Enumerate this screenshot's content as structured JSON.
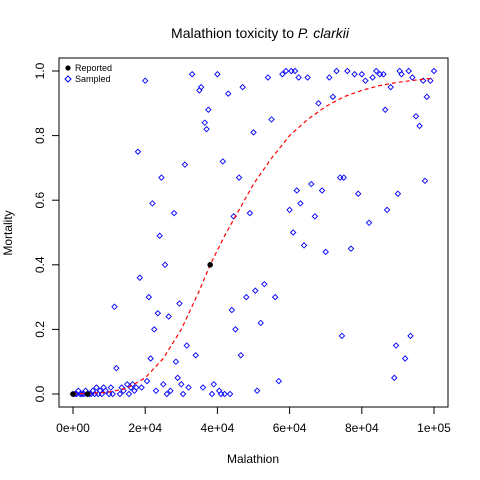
{
  "chart_data": {
    "type": "scatter",
    "title_main": "Malathion toxicity to ",
    "title_italic": "P. clarkii",
    "xlabel": "Malathion",
    "ylabel": "Mortality",
    "xlim": [
      0,
      100000
    ],
    "ylim": [
      0,
      1
    ],
    "x_ticks": [
      0,
      20000,
      40000,
      60000,
      80000,
      100000
    ],
    "x_tick_labels": [
      "0e+00",
      "2e+04",
      "4e+04",
      "6e+04",
      "8e+04",
      "1e+05"
    ],
    "y_ticks": [
      0.0,
      0.2,
      0.4,
      0.6,
      0.8,
      1.0
    ],
    "y_tick_labels": [
      "0.0",
      "0.2",
      "0.4",
      "0.6",
      "0.8",
      "1.0"
    ],
    "legend": {
      "position": "top-left",
      "entries": [
        {
          "label": "Reported",
          "marker": "filled-circle"
        },
        {
          "label": "Sampled",
          "marker": "open-diamond"
        }
      ]
    },
    "colors": {
      "sampled": "#0000ff",
      "reported": "#000000",
      "fit_curve": "#ff0000"
    },
    "fit_curve": {
      "style": "dashed",
      "x": [
        0,
        5000,
        10000,
        15000,
        20000,
        25000,
        30000,
        35000,
        38000,
        42000,
        46000,
        50000,
        55000,
        60000,
        65000,
        70000,
        75000,
        80000,
        85000,
        90000,
        95000,
        100000
      ],
      "y": [
        0.0,
        0.002,
        0.006,
        0.018,
        0.05,
        0.11,
        0.2,
        0.32,
        0.4,
        0.49,
        0.57,
        0.65,
        0.73,
        0.8,
        0.85,
        0.89,
        0.92,
        0.94,
        0.955,
        0.965,
        0.972,
        0.978
      ]
    },
    "reported": [
      {
        "x": 38000,
        "y": 0.4
      },
      {
        "x": 0,
        "y": 0.0
      },
      {
        "x": 4000,
        "y": 0.0
      }
    ],
    "sampled": [
      {
        "x": 0,
        "y": 0.0
      },
      {
        "x": 500,
        "y": 0.0
      },
      {
        "x": 1000,
        "y": 0.0
      },
      {
        "x": 1500,
        "y": 0.01
      },
      {
        "x": 2000,
        "y": 0.0
      },
      {
        "x": 2500,
        "y": 0.0
      },
      {
        "x": 3000,
        "y": 0.0
      },
      {
        "x": 3500,
        "y": 0.01
      },
      {
        "x": 4000,
        "y": 0.0
      },
      {
        "x": 4500,
        "y": 0.0
      },
      {
        "x": 5000,
        "y": 0.0
      },
      {
        "x": 5500,
        "y": 0.01
      },
      {
        "x": 6000,
        "y": 0.0
      },
      {
        "x": 6500,
        "y": 0.02
      },
      {
        "x": 7000,
        "y": 0.0
      },
      {
        "x": 7500,
        "y": 0.01
      },
      {
        "x": 8000,
        "y": 0.0
      },
      {
        "x": 8500,
        "y": 0.02
      },
      {
        "x": 9000,
        "y": 0.01
      },
      {
        "x": 10000,
        "y": 0.0
      },
      {
        "x": 10500,
        "y": 0.02
      },
      {
        "x": 11000,
        "y": 0.0
      },
      {
        "x": 11500,
        "y": 0.27
      },
      {
        "x": 12000,
        "y": 0.08
      },
      {
        "x": 13000,
        "y": 0.0
      },
      {
        "x": 13500,
        "y": 0.02
      },
      {
        "x": 14000,
        "y": 0.01
      },
      {
        "x": 15000,
        "y": 0.03
      },
      {
        "x": 15500,
        "y": 0.0
      },
      {
        "x": 16000,
        "y": 0.02
      },
      {
        "x": 16500,
        "y": 0.03
      },
      {
        "x": 17000,
        "y": 0.01
      },
      {
        "x": 17500,
        "y": 0.02
      },
      {
        "x": 18000,
        "y": 0.75
      },
      {
        "x": 18500,
        "y": 0.36
      },
      {
        "x": 19000,
        "y": 0.02
      },
      {
        "x": 20000,
        "y": 0.97
      },
      {
        "x": 20500,
        "y": 0.04
      },
      {
        "x": 21000,
        "y": 0.3
      },
      {
        "x": 21500,
        "y": 0.11
      },
      {
        "x": 22000,
        "y": 0.59
      },
      {
        "x": 22500,
        "y": 0.2
      },
      {
        "x": 23000,
        "y": 0.01
      },
      {
        "x": 23500,
        "y": 0.25
      },
      {
        "x": 24000,
        "y": 0.49
      },
      {
        "x": 24500,
        "y": 0.67
      },
      {
        "x": 25000,
        "y": 0.03
      },
      {
        "x": 25500,
        "y": 0.4
      },
      {
        "x": 26000,
        "y": 0.0
      },
      {
        "x": 26500,
        "y": 0.24
      },
      {
        "x": 27000,
        "y": 0.01
      },
      {
        "x": 28000,
        "y": 0.56
      },
      {
        "x": 28500,
        "y": 0.1
      },
      {
        "x": 29000,
        "y": 0.05
      },
      {
        "x": 29500,
        "y": 0.28
      },
      {
        "x": 30000,
        "y": 0.03
      },
      {
        "x": 30500,
        "y": 0.0
      },
      {
        "x": 31000,
        "y": 0.71
      },
      {
        "x": 31500,
        "y": 0.15
      },
      {
        "x": 32000,
        "y": 0.02
      },
      {
        "x": 33000,
        "y": 0.99
      },
      {
        "x": 34000,
        "y": 0.12
      },
      {
        "x": 35000,
        "y": 0.94
      },
      {
        "x": 35500,
        "y": 0.95
      },
      {
        "x": 36000,
        "y": 0.02
      },
      {
        "x": 36500,
        "y": 0.84
      },
      {
        "x": 37000,
        "y": 0.82
      },
      {
        "x": 37500,
        "y": 0.88
      },
      {
        "x": 38500,
        "y": 0.0
      },
      {
        "x": 39000,
        "y": 0.03
      },
      {
        "x": 40000,
        "y": 0.99
      },
      {
        "x": 40500,
        "y": 0.01
      },
      {
        "x": 41000,
        "y": 0.0
      },
      {
        "x": 41500,
        "y": 0.72
      },
      {
        "x": 42000,
        "y": 0.0
      },
      {
        "x": 43000,
        "y": 0.93
      },
      {
        "x": 43500,
        "y": 0.0
      },
      {
        "x": 44000,
        "y": 0.26
      },
      {
        "x": 44500,
        "y": 0.55
      },
      {
        "x": 45000,
        "y": 0.2
      },
      {
        "x": 46000,
        "y": 0.67
      },
      {
        "x": 46500,
        "y": 0.12
      },
      {
        "x": 47000,
        "y": 0.95
      },
      {
        "x": 48000,
        "y": 0.3
      },
      {
        "x": 49000,
        "y": 0.56
      },
      {
        "x": 50000,
        "y": 0.81
      },
      {
        "x": 50500,
        "y": 0.32
      },
      {
        "x": 51000,
        "y": 0.01
      },
      {
        "x": 52000,
        "y": 0.22
      },
      {
        "x": 53000,
        "y": 0.34
      },
      {
        "x": 54000,
        "y": 0.98
      },
      {
        "x": 55000,
        "y": 0.85
      },
      {
        "x": 56000,
        "y": 0.3
      },
      {
        "x": 57000,
        "y": 0.04
      },
      {
        "x": 58000,
        "y": 0.99
      },
      {
        "x": 59000,
        "y": 1.0
      },
      {
        "x": 60000,
        "y": 0.57
      },
      {
        "x": 60500,
        "y": 1.0
      },
      {
        "x": 61000,
        "y": 0.5
      },
      {
        "x": 61500,
        "y": 1.0
      },
      {
        "x": 62000,
        "y": 0.63
      },
      {
        "x": 62500,
        "y": 0.98
      },
      {
        "x": 63000,
        "y": 0.59
      },
      {
        "x": 64000,
        "y": 0.46
      },
      {
        "x": 65000,
        "y": 0.98
      },
      {
        "x": 66000,
        "y": 0.65
      },
      {
        "x": 67000,
        "y": 0.55
      },
      {
        "x": 68000,
        "y": 0.9
      },
      {
        "x": 69000,
        "y": 0.63
      },
      {
        "x": 70000,
        "y": 0.44
      },
      {
        "x": 71000,
        "y": 0.98
      },
      {
        "x": 72000,
        "y": 0.92
      },
      {
        "x": 73000,
        "y": 1.0
      },
      {
        "x": 74000,
        "y": 0.67
      },
      {
        "x": 74500,
        "y": 0.18
      },
      {
        "x": 75000,
        "y": 0.67
      },
      {
        "x": 76000,
        "y": 1.0
      },
      {
        "x": 77000,
        "y": 0.45
      },
      {
        "x": 78000,
        "y": 0.99
      },
      {
        "x": 79000,
        "y": 0.62
      },
      {
        "x": 80000,
        "y": 0.99
      },
      {
        "x": 81000,
        "y": 0.97
      },
      {
        "x": 82000,
        "y": 0.53
      },
      {
        "x": 83000,
        "y": 0.98
      },
      {
        "x": 84000,
        "y": 1.0
      },
      {
        "x": 85000,
        "y": 0.99
      },
      {
        "x": 86000,
        "y": 0.99
      },
      {
        "x": 86500,
        "y": 0.88
      },
      {
        "x": 87000,
        "y": 0.57
      },
      {
        "x": 88000,
        "y": 0.95
      },
      {
        "x": 89000,
        "y": 0.05
      },
      {
        "x": 89500,
        "y": 0.15
      },
      {
        "x": 90000,
        "y": 0.62
      },
      {
        "x": 90500,
        "y": 1.0
      },
      {
        "x": 91000,
        "y": 0.99
      },
      {
        "x": 92000,
        "y": 0.11
      },
      {
        "x": 93000,
        "y": 1.0
      },
      {
        "x": 93500,
        "y": 0.18
      },
      {
        "x": 94000,
        "y": 0.98
      },
      {
        "x": 95000,
        "y": 0.86
      },
      {
        "x": 96000,
        "y": 0.83
      },
      {
        "x": 97000,
        "y": 0.97
      },
      {
        "x": 97500,
        "y": 0.66
      },
      {
        "x": 98000,
        "y": 0.92
      },
      {
        "x": 99000,
        "y": 0.97
      },
      {
        "x": 100000,
        "y": 1.0
      }
    ]
  }
}
